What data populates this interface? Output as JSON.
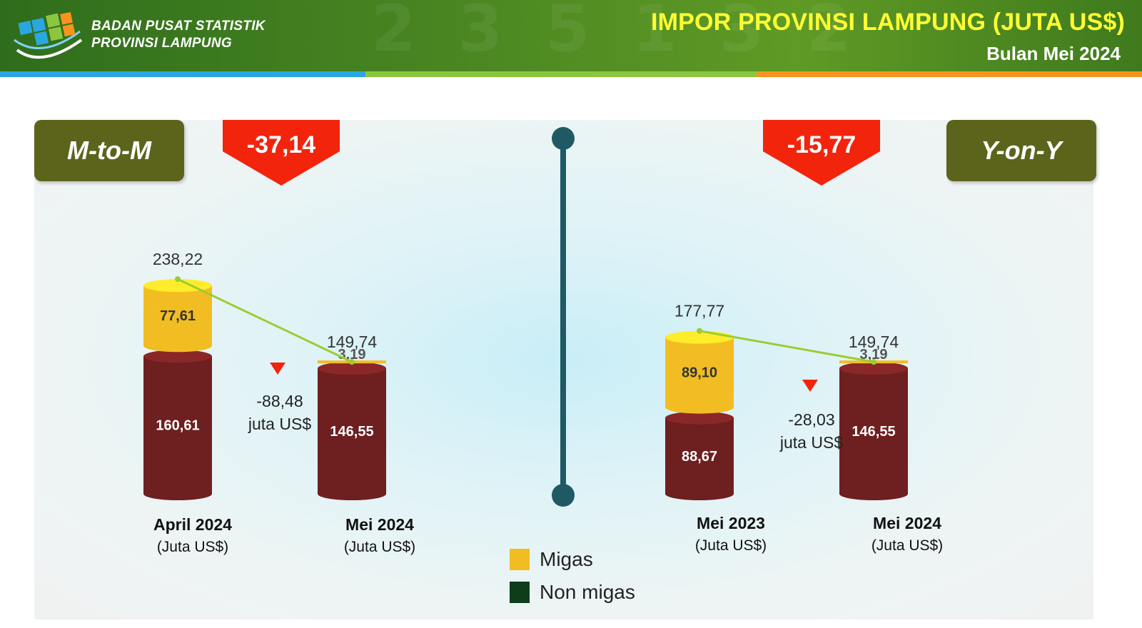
{
  "header": {
    "org_line1": "BADAN PUSAT STATISTIK",
    "org_line2": "PROVINSI LAMPUNG",
    "title": "IMPOR PROVINSI LAMPUNG (JUTA US$)",
    "subtitle": "Bulan Mei 2024"
  },
  "colors": {
    "migas": "#f2bd22",
    "non_migas": "#6e1f1f",
    "trend_line": "#9acd32",
    "arrow": "#f3240c",
    "badge": "#5c641c"
  },
  "mtom": {
    "badge": "M-to-M",
    "change_pct": "-37,14",
    "diff_value": "-88,48",
    "diff_unit": "juta US$"
  },
  "yony": {
    "badge": "Y-on-Y",
    "change_pct": "-15,77",
    "diff_value": "-28,03",
    "diff_unit": "juta US$"
  },
  "legend": {
    "migas": "Migas",
    "non_migas": "Non migas",
    "non_migas_swatch": "#0d3d1a"
  },
  "chart_data": [
    {
      "type": "bar",
      "stacked": true,
      "categories": [
        "April 2024",
        "Mei 2024"
      ],
      "unit_label": "(Juta US$)",
      "series": [
        {
          "name": "Non migas",
          "values": [
            160.61,
            146.55
          ],
          "labels": [
            "160,61",
            "146,55"
          ]
        },
        {
          "name": "Migas",
          "values": [
            77.61,
            3.19
          ],
          "labels": [
            "77,61",
            "3,19"
          ]
        }
      ],
      "totals": [
        238.22,
        149.74
      ],
      "total_labels": [
        "238,22",
        "149,74"
      ]
    },
    {
      "type": "bar",
      "stacked": true,
      "categories": [
        "Mei 2023",
        "Mei 2024"
      ],
      "unit_label": "(Juta US$)",
      "series": [
        {
          "name": "Non migas",
          "values": [
            88.67,
            146.55
          ],
          "labels": [
            "88,67",
            "146,55"
          ]
        },
        {
          "name": "Migas",
          "values": [
            89.1,
            3.19
          ],
          "labels": [
            "89,10",
            "3,19"
          ]
        }
      ],
      "totals": [
        177.77,
        149.74
      ],
      "total_labels": [
        "177,77",
        "149,74"
      ]
    }
  ]
}
